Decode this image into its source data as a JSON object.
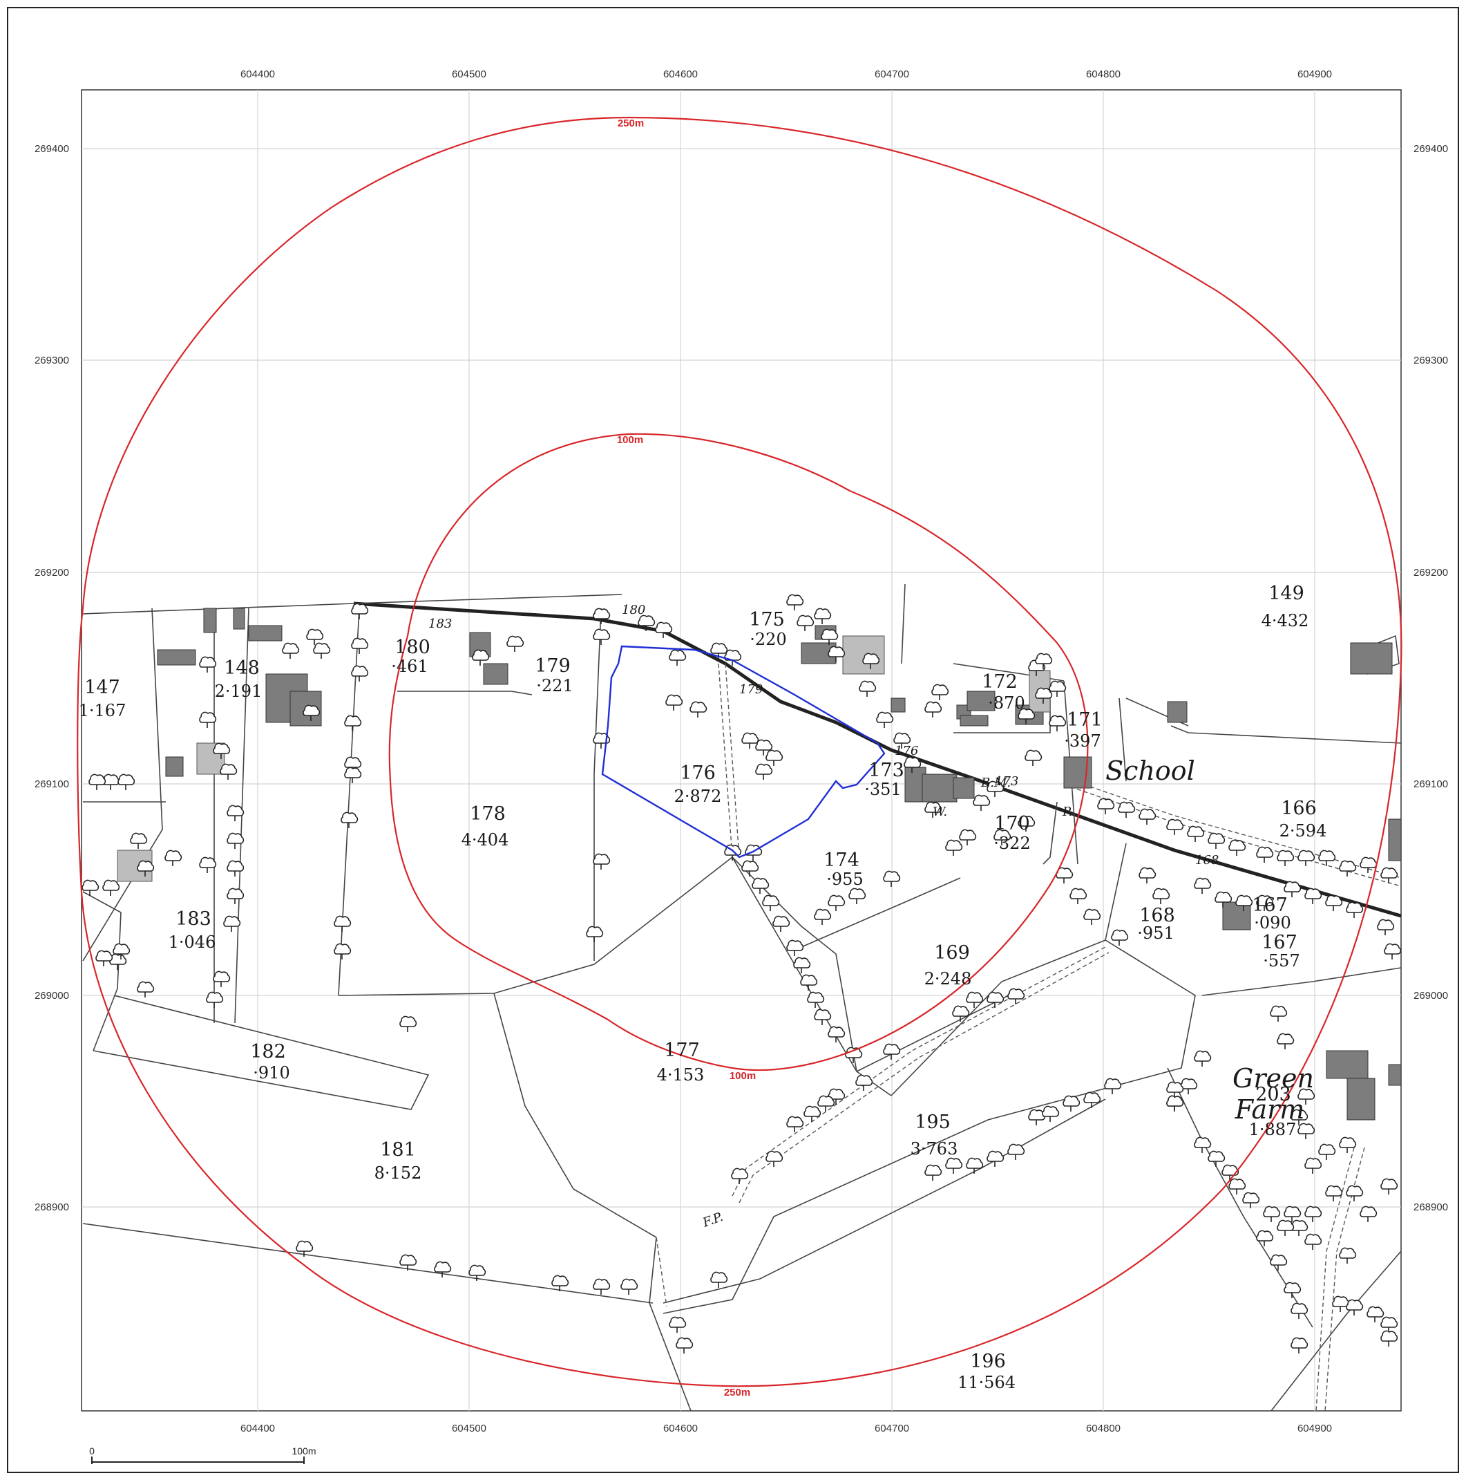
{
  "map": {
    "eastings": [
      "604400",
      "604500",
      "604600",
      "604700",
      "604800",
      "604900"
    ],
    "northings": [
      "269400",
      "269300",
      "269200",
      "269100",
      "269000",
      "268900"
    ],
    "buffers": [
      {
        "label_top": "250m",
        "label_bottom": "250m",
        "color": "#d8262a"
      },
      {
        "label_top": "100m",
        "label_bottom": "100m",
        "color": "#d8262a"
      }
    ],
    "site_boundary_color": "#1f2fd6",
    "parcels": [
      {
        "num": "147",
        "area": "1·167"
      },
      {
        "num": "148",
        "area": "2·191"
      },
      {
        "num": "180",
        "area": "·461"
      },
      {
        "num": "179",
        "area": "·221"
      },
      {
        "num": "175",
        "area": "·220"
      },
      {
        "num": "172",
        "area": "·870"
      },
      {
        "num": "171",
        "area": "·397"
      },
      {
        "num": "149",
        "area": "4·432"
      },
      {
        "num": "176",
        "area": "2·872"
      },
      {
        "num": "173",
        "area": "·351"
      },
      {
        "num": "178",
        "area": "4·404"
      },
      {
        "num": "170",
        "area": "·322"
      },
      {
        "num": "166",
        "area": "2·594"
      },
      {
        "num": "174",
        "area": "·955"
      },
      {
        "num": "183",
        "area": "1·046"
      },
      {
        "num": "168",
        "area": "·951"
      },
      {
        "num": "167",
        "area": "·090"
      },
      {
        "num": "167",
        "area": "·557"
      },
      {
        "num": "169",
        "area": "2·248"
      },
      {
        "num": "182",
        "area": "·910"
      },
      {
        "num": "177",
        "area": "4·153"
      },
      {
        "num": "203",
        "area": "1·887"
      },
      {
        "num": "195",
        "area": "3·763"
      },
      {
        "num": "181",
        "area": "8·152"
      },
      {
        "num": "196",
        "area": "11·564"
      }
    ],
    "small_labels": [
      "183",
      "180",
      "179",
      "176",
      "173",
      "168",
      "B.M.",
      "W.",
      "P.",
      "F.P."
    ],
    "place_names": [
      "School",
      "Green",
      "Farm"
    ],
    "scale_bar": {
      "start": "0",
      "end": "100m"
    }
  }
}
